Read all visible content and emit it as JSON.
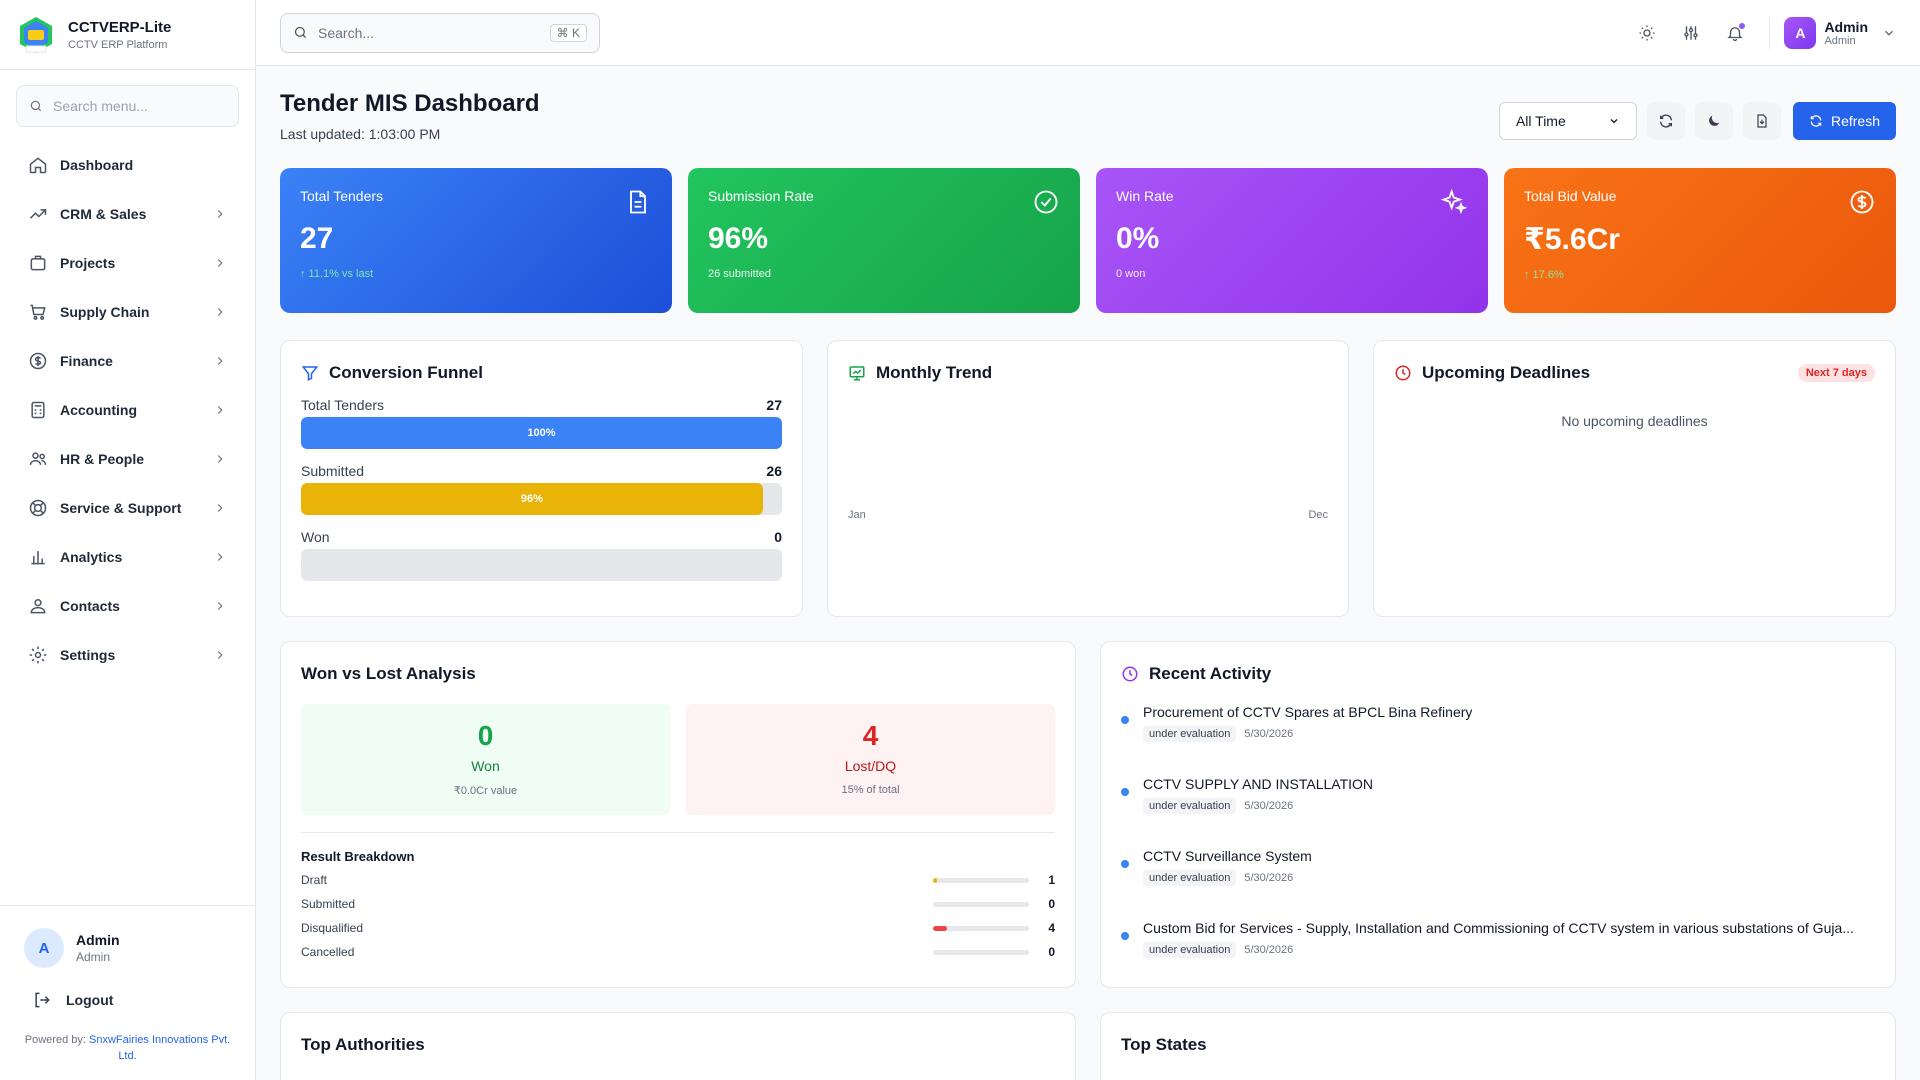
{
  "brand": {
    "name": "CCTVERP-Lite",
    "subtitle": "CCTV ERP Platform"
  },
  "sidebar": {
    "search_placeholder": "Search menu...",
    "items": [
      {
        "label": "Dashboard",
        "icon": "home-icon"
      },
      {
        "label": "CRM & Sales",
        "icon": "trending-up-icon"
      },
      {
        "label": "Projects",
        "icon": "briefcase-icon"
      },
      {
        "label": "Supply Chain",
        "icon": "cart-icon"
      },
      {
        "label": "Finance",
        "icon": "dollar-circle-icon"
      },
      {
        "label": "Accounting",
        "icon": "calculator-icon"
      },
      {
        "label": "HR & People",
        "icon": "users-icon"
      },
      {
        "label": "Service & Support",
        "icon": "lifebuoy-icon"
      },
      {
        "label": "Analytics",
        "icon": "bar-chart-icon"
      },
      {
        "label": "Contacts",
        "icon": "contacts-icon"
      },
      {
        "label": "Settings",
        "icon": "gear-icon"
      }
    ],
    "user": {
      "initial": "A",
      "name": "Admin",
      "role": "Admin"
    },
    "logout_label": "Logout",
    "powered_prefix": "Powered by:",
    "powered_company": "SnxwFairies Innovations Pvt. Ltd."
  },
  "topbar": {
    "search_placeholder": "Search...",
    "shortcut": "⌘ K",
    "user": {
      "initial": "A",
      "name": "Admin",
      "role": "Admin"
    }
  },
  "header": {
    "title": "Tender MIS Dashboard",
    "updated": "Last updated: 1:03:00 PM",
    "period_selected": "All Time",
    "refresh_label": "Refresh"
  },
  "stats": [
    {
      "title": "Total Tenders",
      "value": "27",
      "sub": "↑ 11.1% vs last",
      "icon": "document-icon"
    },
    {
      "title": "Submission Rate",
      "value": "96%",
      "sub": "26 submitted",
      "icon": "check-circle-icon"
    },
    {
      "title": "Win Rate",
      "value": "0%",
      "sub": "0 won",
      "icon": "sparkles-icon"
    },
    {
      "title": "Total Bid Value",
      "value": "₹5.6Cr",
      "sub": "↑ 17.6%",
      "icon": "dollar-circle-icon"
    }
  ],
  "funnel": {
    "title": "Conversion Funnel",
    "rows": [
      {
        "label": "Total Tenders",
        "count": "27",
        "pct_label": "100%",
        "fraction": 1.0,
        "color": "#3b82f6"
      },
      {
        "label": "Submitted",
        "count": "26",
        "pct_label": "96%",
        "fraction": 0.96,
        "color": "#eab308"
      },
      {
        "label": "Won",
        "count": "0",
        "pct_label": "",
        "fraction": 0.0,
        "color": "#22c55e"
      }
    ]
  },
  "trend": {
    "title": "Monthly Trend",
    "x_start": "Jan",
    "x_end": "Dec"
  },
  "deadlines": {
    "title": "Upcoming Deadlines",
    "badge": "Next 7 days",
    "empty": "No upcoming deadlines"
  },
  "wonlost": {
    "title": "Won vs Lost Analysis",
    "won": {
      "count": "0",
      "label": "Won",
      "sub": "₹0.0Cr value"
    },
    "lost": {
      "count": "4",
      "label": "Lost/DQ",
      "sub": "15% of total"
    },
    "breakdown_title": "Result Breakdown",
    "breakdown": [
      {
        "name": "Draft",
        "count": "1",
        "fraction": 0.04,
        "color": "#eab308"
      },
      {
        "name": "Submitted",
        "count": "0",
        "fraction": 0.0,
        "color": "#3b82f6"
      },
      {
        "name": "Disqualified",
        "count": "4",
        "fraction": 0.15,
        "color": "#ef4444"
      },
      {
        "name": "Cancelled",
        "count": "0",
        "fraction": 0.0,
        "color": "#6b7280"
      }
    ]
  },
  "activity": {
    "title": "Recent Activity",
    "items": [
      {
        "title": "Procurement of CCTV Spares at BPCL Bina Refinery",
        "status": "under evaluation",
        "date": "5/30/2026"
      },
      {
        "title": "CCTV SUPPLY AND INSTALLATION",
        "status": "under evaluation",
        "date": "5/30/2026"
      },
      {
        "title": "CCTV Surveillance System",
        "status": "under evaluation",
        "date": "5/30/2026"
      },
      {
        "title": "Custom Bid for Services - Supply, Installation and Commissioning of CCTV system in various substations of Guja...",
        "status": "under evaluation",
        "date": "5/30/2026"
      }
    ]
  },
  "bottom": {
    "authorities_title": "Top Authorities",
    "states_title": "Top States"
  }
}
